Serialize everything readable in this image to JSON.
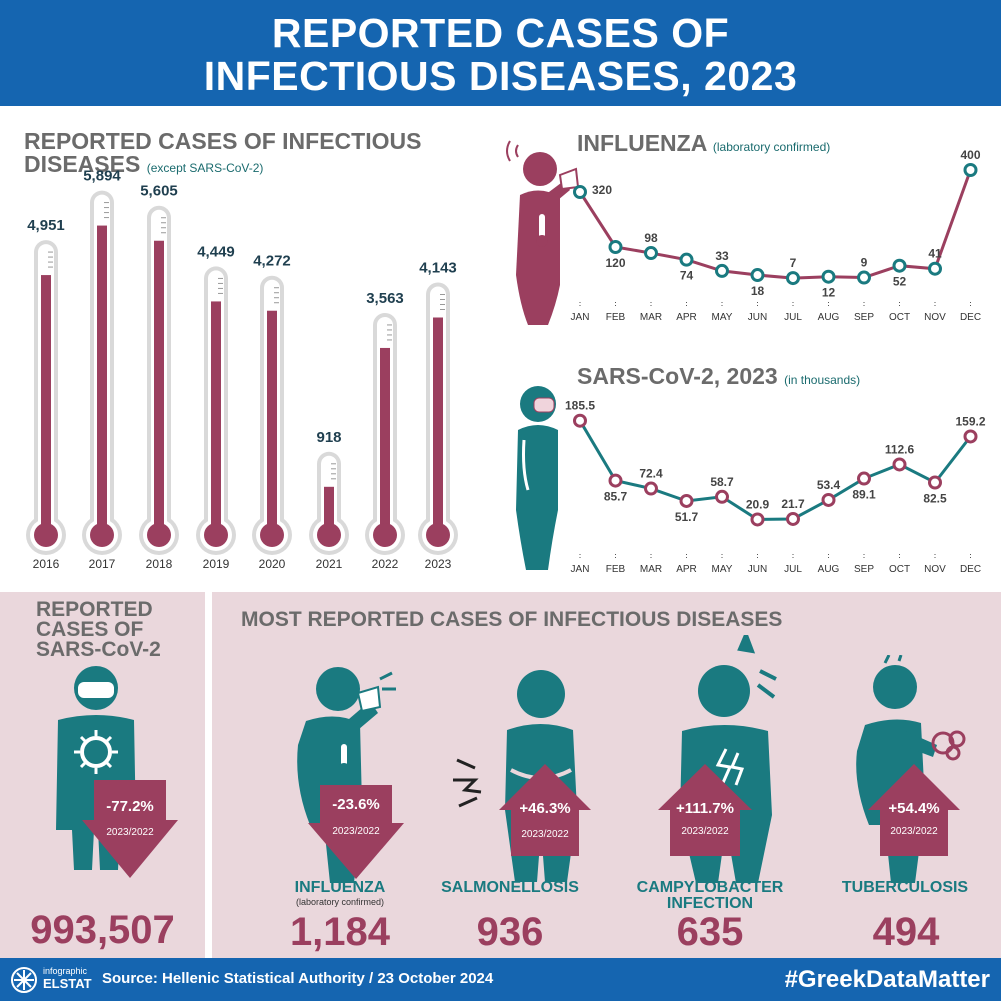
{
  "header": {
    "line1": "REPORTED CASES OF",
    "line2": "INFECTIOUS DISEASES, 2023"
  },
  "thermo_section": {
    "title_line1": "REPORTED CASES OF INFECTIOUS",
    "title_line2": "DISEASES",
    "title_note": "(except SARS-CoV-2)"
  },
  "influenza_section": {
    "title": "INFLUENZA",
    "note": "(laboratory confirmed)"
  },
  "sars_section": {
    "title": "SARS-CoV-2, 2023",
    "note": "(in thousands)"
  },
  "sars_total": {
    "title_line1": "REPORTED",
    "title_line2": "CASES OF",
    "title_line3": "SARS-CoV-2",
    "pct": "-77.2%",
    "period": "2023/2022",
    "value": "993,507"
  },
  "most_reported": {
    "title": "MOST REPORTED CASES OF INFECTIOUS DISEASES",
    "items": [
      {
        "name": "INFLUENZA",
        "sub": "(laboratory confirmed)",
        "pct": "-23.6%",
        "period": "2023/2022",
        "value": "1,184",
        "direction": "down"
      },
      {
        "name": "SALMONELLOSIS",
        "sub": "",
        "pct": "+46.3%",
        "period": "2023/2022",
        "value": "936",
        "direction": "up"
      },
      {
        "name": "CAMPYLOBACTER INFECTION",
        "sub": "",
        "pct": "+111.7%",
        "period": "2023/2022",
        "value": "635",
        "direction": "up"
      },
      {
        "name": "TUBERCULOSIS",
        "sub": "",
        "pct": "+54.4%",
        "period": "2023/2022",
        "value": "494",
        "direction": "up"
      }
    ]
  },
  "footer": {
    "logo_top": "infographic",
    "logo_bottom": "ELSTAT",
    "source": "Source: Hellenic Statistical Authority / 23 October 2024",
    "hashtag": "#GreekDataMatter"
  },
  "colors": {
    "header_blue": "#1565b0",
    "maroon": "#9b3f5f",
    "teal": "#1a7a80",
    "pink_bg": "#ead7dc"
  },
  "chart_data": [
    {
      "type": "bar",
      "categories": [
        "2016",
        "2017",
        "2018",
        "2019",
        "2020",
        "2021",
        "2022",
        "2023"
      ],
      "values": [
        4951,
        5894,
        5605,
        4449,
        4272,
        918,
        3563,
        4143
      ],
      "labels": [
        "4,951",
        "5,894",
        "5,605",
        "4,449",
        "4,272",
        "918",
        "3,563",
        "4,143"
      ]
    },
    {
      "type": "line",
      "x": [
        "JAN",
        "FEB",
        "MAR",
        "APR",
        "MAY",
        "JUN",
        "JUL",
        "AUG",
        "SEP",
        "OCT",
        "NOV",
        "DEC"
      ],
      "values": [
        320,
        120,
        98,
        74,
        33,
        18,
        7,
        12,
        9,
        52,
        41,
        400
      ]
    },
    {
      "type": "line",
      "x": [
        "JAN",
        "FEB",
        "MAR",
        "APR",
        "MAY",
        "JUN",
        "JUL",
        "AUG",
        "SEP",
        "OCT",
        "NOV",
        "DEC"
      ],
      "values": [
        185.5,
        85.7,
        72.4,
        51.7,
        58.7,
        20.9,
        21.7,
        53.4,
        89.1,
        112.6,
        82.5,
        159.2
      ]
    }
  ]
}
